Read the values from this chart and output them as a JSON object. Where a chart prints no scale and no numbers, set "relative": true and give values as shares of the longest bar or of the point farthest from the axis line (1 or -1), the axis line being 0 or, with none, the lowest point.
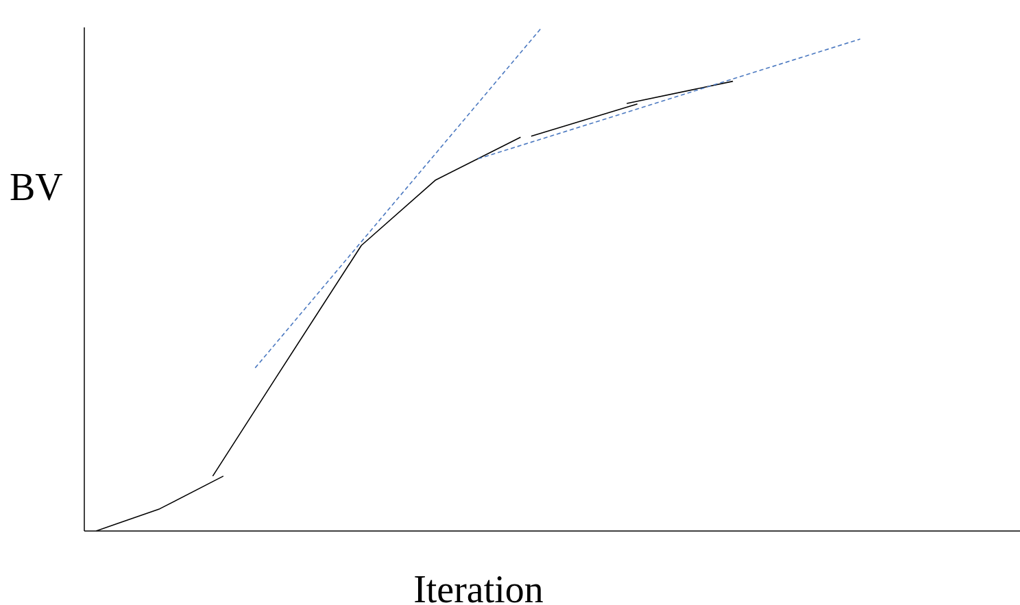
{
  "chart_data": {
    "type": "line",
    "relative": true,
    "xlabel": "Iteration",
    "ylabel": "BV",
    "marker": "none",
    "categories": [
      null,
      null,
      null,
      null,
      null,
      null,
      null,
      null,
      null,
      null,
      null,
      null,
      null,
      null,
      null,
      null,
      null,
      null,
      null,
      null,
      null,
      null,
      null,
      null,
      null,
      null,
      null,
      null,
      null,
      null,
      null,
      null,
      null,
      null,
      null,
      null,
      null,
      null,
      null,
      null,
      null,
      null,
      null,
      null,
      null,
      null,
      null,
      null,
      null,
      null,
      null,
      null,
      null,
      null,
      null,
      null,
      null,
      null,
      null,
      null,
      null,
      null,
      null,
      null,
      null,
      null,
      null,
      null,
      null,
      null,
      null,
      null,
      null
    ],
    "series": [
      {
        "color": "#000000",
        "line_style": "solid",
        "values": [
          0,
          null,
          null,
          null,
          null,
          null,
          0.044,
          null,
          null,
          null,
          null,
          null,
          0.109,
          null,
          null,
          null,
          null,
          null,
          null,
          null,
          null,
          null,
          null,
          null,
          null,
          null,
          null,
          null,
          null,
          null,
          null,
          null,
          null,
          null,
          null,
          null,
          null,
          null,
          null,
          null,
          null,
          null,
          null,
          null,
          null,
          null,
          null,
          null,
          null,
          null,
          null,
          null,
          null,
          null,
          null,
          null,
          null,
          null,
          null,
          null,
          null,
          null,
          null,
          null,
          null,
          null,
          null,
          null,
          null,
          null,
          null,
          null,
          null
        ]
      },
      {
        "color": "#000000",
        "line_style": "solid",
        "values": [
          null,
          null,
          null,
          null,
          null,
          null,
          null,
          null,
          null,
          null,
          null,
          0.109,
          null,
          null,
          null,
          null,
          null,
          0.306,
          null,
          null,
          null,
          null,
          null,
          null,
          null,
          0.567,
          null,
          null,
          null,
          null,
          null,
          null,
          0.697,
          null,
          null,
          null,
          null,
          null,
          null,
          null,
          0.782,
          null,
          null,
          null,
          null,
          null,
          null,
          null,
          null,
          null,
          null,
          null,
          null,
          null,
          null,
          null,
          null,
          null,
          null,
          null,
          null,
          null,
          null,
          null,
          null,
          null,
          null,
          null,
          null,
          null,
          null,
          null,
          null
        ]
      },
      {
        "color": "#000000",
        "line_style": "solid",
        "values": [
          null,
          null,
          null,
          null,
          null,
          null,
          null,
          null,
          null,
          null,
          null,
          null,
          null,
          null,
          null,
          null,
          null,
          null,
          null,
          null,
          null,
          null,
          null,
          null,
          null,
          null,
          null,
          null,
          null,
          null,
          null,
          null,
          null,
          null,
          null,
          null,
          null,
          null,
          null,
          null,
          null,
          0.784,
          null,
          null,
          null,
          null,
          null,
          null,
          null,
          null,
          null,
          0.848,
          null,
          null,
          null,
          null,
          null,
          null,
          null,
          null,
          null,
          null,
          null,
          null,
          null,
          null,
          null,
          null,
          null,
          null,
          null,
          null,
          null
        ]
      },
      {
        "color": "#000000",
        "line_style": "solid",
        "values": [
          null,
          null,
          null,
          null,
          null,
          null,
          null,
          null,
          null,
          null,
          null,
          null,
          null,
          null,
          null,
          null,
          null,
          null,
          null,
          null,
          null,
          null,
          null,
          null,
          null,
          null,
          null,
          null,
          null,
          null,
          null,
          null,
          null,
          null,
          null,
          null,
          null,
          null,
          null,
          null,
          null,
          null,
          null,
          null,
          null,
          null,
          null,
          null,
          null,
          null,
          0.849,
          null,
          null,
          null,
          null,
          null,
          null,
          null,
          null,
          null,
          0.893,
          null,
          null,
          null,
          null,
          null,
          null,
          null,
          null,
          null,
          null,
          null,
          null
        ]
      },
      {
        "color": "#4a78c0",
        "line_style": "dashed",
        "values": [
          null,
          null,
          null,
          null,
          null,
          null,
          null,
          null,
          null,
          null,
          null,
          null,
          null,
          null,
          null,
          0.324,
          null,
          null,
          null,
          null,
          null,
          null,
          null,
          null,
          null,
          null,
          null,
          null,
          null,
          null,
          null,
          null,
          null,
          null,
          null,
          null,
          null,
          null,
          null,
          null,
          null,
          null,
          1,
          null,
          null,
          null,
          null,
          null,
          null,
          null,
          null,
          null,
          null,
          null,
          null,
          null,
          null,
          null,
          null,
          null,
          null,
          null,
          null,
          null,
          null,
          null,
          null,
          null,
          null,
          null,
          null,
          null,
          null
        ]
      },
      {
        "color": "#4a78c0",
        "line_style": "dashed",
        "values": [
          null,
          null,
          null,
          null,
          null,
          null,
          null,
          null,
          null,
          null,
          null,
          null,
          null,
          null,
          null,
          null,
          null,
          null,
          null,
          null,
          null,
          null,
          null,
          null,
          null,
          null,
          null,
          null,
          null,
          null,
          null,
          null,
          null,
          null,
          null,
          null,
          0.739,
          null,
          null,
          null,
          null,
          null,
          null,
          null,
          null,
          null,
          null,
          null,
          null,
          null,
          null,
          null,
          null,
          null,
          null,
          null,
          null,
          null,
          null,
          null,
          null,
          null,
          null,
          null,
          null,
          null,
          null,
          null,
          null,
          null,
          null,
          null,
          0.977
        ]
      }
    ]
  }
}
